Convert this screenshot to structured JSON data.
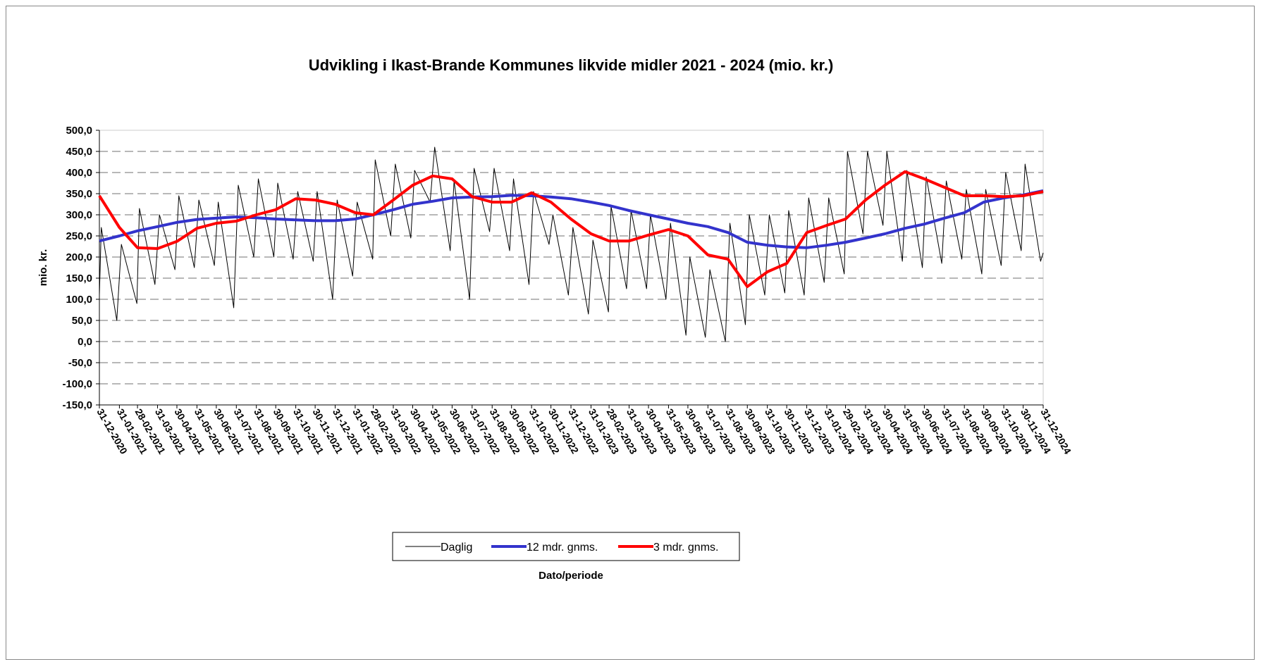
{
  "chart_data": {
    "type": "line",
    "title": "Udvikling i Ikast-Brande Kommunes likvide midler 2021 - 2024 (mio. kr.)",
    "x_label": "Dato/periode",
    "y_label": "mio. kr.",
    "x": [
      "31-12-2020",
      "31-01-2021",
      "28-02-2021",
      "31-03-2021",
      "30-04-2021",
      "31-05-2021",
      "30-06-2021",
      "31-07-2021",
      "31-08-2021",
      "30-09-2021",
      "31-10-2021",
      "30-11-2021",
      "31-12-2021",
      "31-01-2022",
      "28-02-2022",
      "31-03-2022",
      "30-04-2022",
      "31-05-2022",
      "30-06-2022",
      "31-07-2022",
      "31-08-2022",
      "30-09-2022",
      "31-10-2022",
      "30-11-2022",
      "31-12-2022",
      "31-01-2023",
      "28-02-2023",
      "31-03-2023",
      "30-04-2023",
      "31-05-2023",
      "30-06-2023",
      "31-07-2023",
      "31-08-2023",
      "30-09-2023",
      "31-10-2023",
      "30-11-2023",
      "31-12-2023",
      "31-01-2024",
      "29-02-2024",
      "31-03-2024",
      "30-04-2024",
      "31-05-2024",
      "30-06-2024",
      "31-07-2024",
      "31-08-2024",
      "30-09-2024",
      "31-10-2024",
      "30-11-2024",
      "31-12-2024"
    ],
    "series": [
      {
        "name": "Daglig",
        "color": "#000000",
        "width": 1,
        "x": [
          "31-12-2020",
          "03-01-2021",
          "27-01-2021",
          "03-02-2021",
          "27-02-2021",
          "03-03-2021",
          "27-03-2021",
          "03-04-2021",
          "27-04-2021",
          "03-05-2021",
          "27-05-2021",
          "03-06-2021",
          "27-06-2021",
          "03-07-2021",
          "27-07-2021",
          "03-08-2021",
          "27-08-2021",
          "03-09-2021",
          "27-09-2021",
          "03-10-2021",
          "27-10-2021",
          "03-11-2021",
          "27-11-2021",
          "03-12-2021",
          "27-12-2021",
          "03-01-2022",
          "27-01-2022",
          "03-02-2022",
          "27-02-2022",
          "03-03-2022",
          "27-03-2022",
          "03-04-2022",
          "27-04-2022",
          "03-05-2022",
          "27-05-2022",
          "03-06-2022",
          "27-06-2022",
          "03-07-2022",
          "27-07-2022",
          "03-08-2022",
          "27-08-2022",
          "03-09-2022",
          "27-09-2022",
          "03-10-2022",
          "27-10-2022",
          "03-11-2022",
          "27-11-2022",
          "03-12-2022",
          "27-12-2022",
          "03-01-2023",
          "27-01-2023",
          "03-02-2023",
          "27-02-2023",
          "03-03-2023",
          "27-03-2023",
          "03-04-2023",
          "27-04-2023",
          "03-05-2023",
          "27-05-2023",
          "03-06-2023",
          "27-06-2023",
          "03-07-2023",
          "27-07-2023",
          "03-08-2023",
          "27-08-2023",
          "03-09-2023",
          "27-09-2023",
          "03-10-2023",
          "27-10-2023",
          "03-11-2023",
          "27-11-2023",
          "03-12-2023",
          "27-12-2023",
          "03-01-2024",
          "27-01-2024",
          "03-02-2024",
          "27-02-2024",
          "03-03-2024",
          "27-03-2024",
          "03-04-2024",
          "27-04-2024",
          "03-05-2024",
          "27-05-2024",
          "03-06-2024",
          "27-06-2024",
          "03-07-2024",
          "27-07-2024",
          "03-08-2024",
          "27-08-2024",
          "03-09-2024",
          "27-09-2024",
          "03-10-2024",
          "27-10-2024",
          "03-11-2024",
          "27-11-2024",
          "03-12-2024",
          "27-12-2024",
          "31-12-2024"
        ],
        "values": [
          110,
          270,
          50,
          230,
          90,
          315,
          135,
          300,
          170,
          345,
          175,
          335,
          180,
          330,
          80,
          370,
          200,
          385,
          200,
          375,
          195,
          355,
          190,
          355,
          100,
          335,
          155,
          330,
          195,
          430,
          250,
          420,
          245,
          405,
          330,
          460,
          215,
          380,
          100,
          410,
          260,
          410,
          215,
          385,
          135,
          355,
          230,
          300,
          110,
          270,
          65,
          240,
          70,
          320,
          125,
          310,
          125,
          300,
          100,
          280,
          15,
          200,
          10,
          170,
          0,
          280,
          40,
          300,
          110,
          300,
          115,
          310,
          110,
          340,
          140,
          340,
          160,
          450,
          255,
          450,
          275,
          450,
          190,
          405,
          175,
          390,
          185,
          380,
          195,
          360,
          160,
          360,
          180,
          400,
          215,
          420,
          190,
          210
        ]
      },
      {
        "name": "12 mdr. gnms.",
        "color": "#3333cc",
        "width": 4,
        "values": [
          238,
          250,
          262,
          272,
          282,
          289,
          292,
          295,
          293,
          290,
          288,
          286,
          286,
          290,
          300,
          312,
          325,
          332,
          340,
          342,
          343,
          346,
          345,
          342,
          338,
          330,
          322,
          310,
          300,
          290,
          280,
          272,
          258,
          235,
          228,
          224,
          222,
          228,
          235,
          245,
          255,
          268,
          278,
          292,
          305,
          330,
          340,
          347,
          357
        ]
      },
      {
        "name": "3 mdr. gnms.",
        "color": "#ff0000",
        "width": 4,
        "values": [
          345,
          270,
          222,
          220,
          237,
          268,
          280,
          285,
          300,
          312,
          338,
          335,
          325,
          305,
          300,
          335,
          370,
          392,
          385,
          343,
          330,
          330,
          352,
          330,
          290,
          255,
          238,
          238,
          252,
          265,
          250,
          205,
          195,
          130,
          165,
          185,
          258,
          275,
          290,
          335,
          370,
          402,
          385,
          365,
          345,
          345,
          343,
          345,
          355
        ]
      }
    ],
    "xlim": [
      "31-12-2020",
      "31-12-2024"
    ],
    "xticks": [
      "31-12-2020",
      "31-01-2021",
      "28-02-2021",
      "31-03-2021",
      "30-04-2021",
      "31-05-2021",
      "30-06-2021",
      "31-07-2021",
      "31-08-2021",
      "30-09-2021",
      "31-10-2021",
      "30-11-2021",
      "31-12-2021",
      "31-01-2022",
      "28-02-2022",
      "31-03-2022",
      "30-04-2022",
      "31-05-2022",
      "30-06-2022",
      "31-07-2022",
      "31-08-2022",
      "30-09-2022",
      "31-10-2022",
      "30-11-2022",
      "31-12-2022",
      "31-01-2023",
      "28-02-2023",
      "31-03-2023",
      "30-04-2023",
      "31-05-2023",
      "30-06-2023",
      "31-07-2023",
      "31-08-2023",
      "30-09-2023",
      "31-10-2023",
      "30-11-2023",
      "31-12-2023",
      "31-01-2024",
      "29-02-2024",
      "31-03-2024",
      "30-04-2024",
      "31-05-2024",
      "30-06-2024",
      "31-07-2024",
      "31-08-2024",
      "30-09-2024",
      "31-10-2024",
      "30-11-2024",
      "31-12-2024"
    ],
    "ylim": [
      -150,
      500
    ],
    "yticks": [
      {
        "value": -150,
        "label": "-150,0"
      },
      {
        "value": -100,
        "label": "-100,0"
      },
      {
        "value": -50,
        "label": "-50,0"
      },
      {
        "value": 0,
        "label": "0,0"
      },
      {
        "value": 50,
        "label": "50,0"
      },
      {
        "value": 100,
        "label": "100,0"
      },
      {
        "value": 150,
        "label": "150,0"
      },
      {
        "value": 200,
        "label": "200,0"
      },
      {
        "value": 250,
        "label": "250,0"
      },
      {
        "value": 300,
        "label": "300,0"
      },
      {
        "value": 350,
        "label": "350,0"
      },
      {
        "value": 400,
        "label": "400,0"
      },
      {
        "value": 450,
        "label": "450,0"
      },
      {
        "value": 500,
        "label": "500,0"
      }
    ],
    "grid": true,
    "legend": "bottom"
  }
}
